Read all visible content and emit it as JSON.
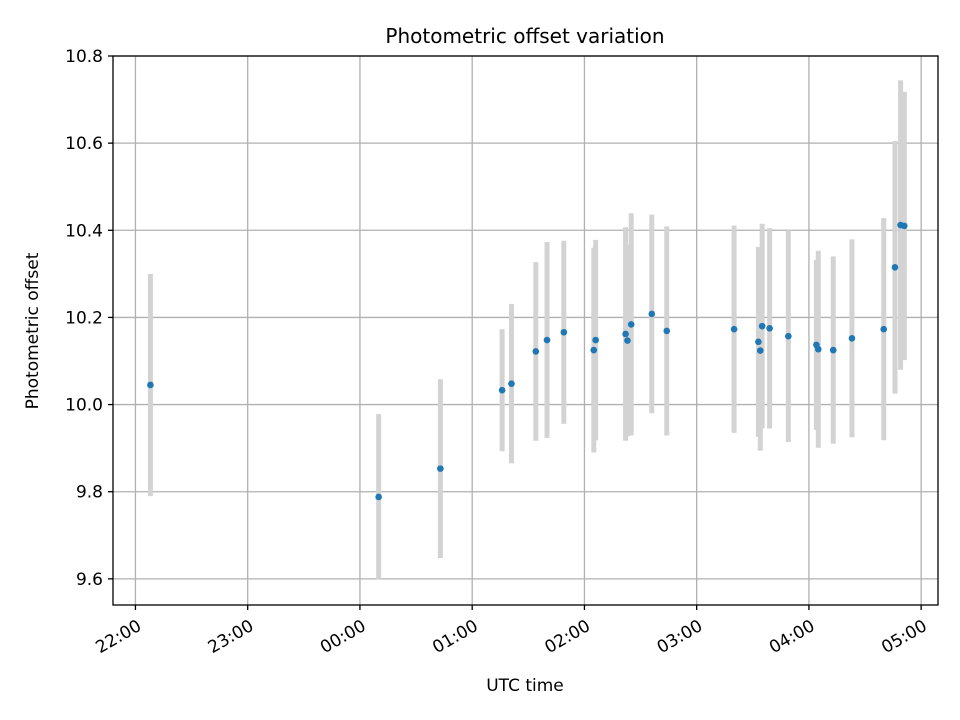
{
  "chart_data": {
    "type": "scatter",
    "title": "Photometric offset variation",
    "xlabel": "UTC time",
    "ylabel": "Photometric offset",
    "grid": true,
    "x_axis": {
      "min": "21:48",
      "max": "05:09",
      "ticks": [
        "22:00",
        "23:00",
        "00:00",
        "01:00",
        "02:00",
        "03:00",
        "04:00",
        "05:00"
      ]
    },
    "ylim": [
      9.54,
      10.8
    ],
    "yticks": [
      "9.6",
      "9.8",
      "10.0",
      "10.2",
      "10.4",
      "10.6",
      "10.8"
    ],
    "colors": {
      "points": "#1f77b4",
      "error_bars": "#d3d3d3"
    },
    "series": [
      {
        "points": [
          {
            "x": "22:08",
            "y": 10.045,
            "err": 0.255
          },
          {
            "x": "00:10",
            "y": 9.788,
            "err": 0.19
          },
          {
            "x": "00:43",
            "y": 9.853,
            "err": 0.205
          },
          {
            "x": "01:16",
            "y": 10.033,
            "err": 0.14
          },
          {
            "x": "01:21",
            "y": 10.048,
            "err": 0.183
          },
          {
            "x": "01:34",
            "y": 10.122,
            "err": 0.205
          },
          {
            "x": "01:40",
            "y": 10.148,
            "err": 0.225
          },
          {
            "x": "01:49",
            "y": 10.166,
            "err": 0.21
          },
          {
            "x": "02:05",
            "y": 10.125,
            "err": 0.235
          },
          {
            "x": "02:06",
            "y": 10.148,
            "err": 0.23
          },
          {
            "x": "02:22",
            "y": 10.162,
            "err": 0.245
          },
          {
            "x": "02:23",
            "y": 10.147,
            "err": 0.22
          },
          {
            "x": "02:25",
            "y": 10.184,
            "err": 0.255
          },
          {
            "x": "02:36",
            "y": 10.208,
            "err": 0.228
          },
          {
            "x": "02:44",
            "y": 10.169,
            "err": 0.24
          },
          {
            "x": "03:20",
            "y": 10.173,
            "err": 0.238
          },
          {
            "x": "03:33",
            "y": 10.144,
            "err": 0.218
          },
          {
            "x": "03:34",
            "y": 10.124,
            "err": 0.23
          },
          {
            "x": "03:35",
            "y": 10.18,
            "err": 0.235
          },
          {
            "x": "03:39",
            "y": 10.175,
            "err": 0.23
          },
          {
            "x": "03:49",
            "y": 10.157,
            "err": 0.243
          },
          {
            "x": "04:04",
            "y": 10.137,
            "err": 0.195
          },
          {
            "x": "04:05",
            "y": 10.127,
            "err": 0.226
          },
          {
            "x": "04:13",
            "y": 10.125,
            "err": 0.215
          },
          {
            "x": "04:23",
            "y": 10.152,
            "err": 0.227
          },
          {
            "x": "04:40",
            "y": 10.173,
            "err": 0.255
          },
          {
            "x": "04:46",
            "y": 10.315,
            "err": 0.29
          },
          {
            "x": "04:49",
            "y": 10.412,
            "err": 0.332
          },
          {
            "x": "04:51",
            "y": 10.41,
            "err": 0.308
          }
        ]
      }
    ]
  }
}
